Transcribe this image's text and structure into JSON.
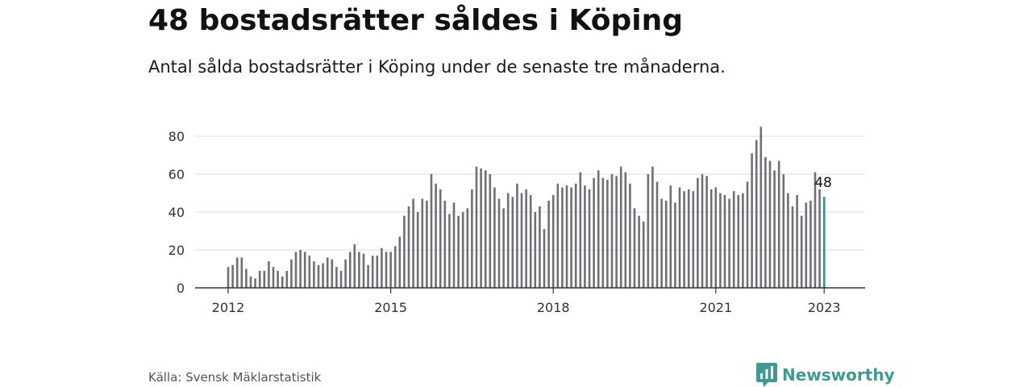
{
  "title": "48 bostadsrätter såldes i Köping",
  "subtitle": "Antal sålda bostadsrätter i Köping under de senaste tre månaderna.",
  "source": "Källa: Svensk Mäklarstatistik",
  "brand": {
    "name": "Newsworthy",
    "icon": "newsworthy-logo-icon",
    "color": "#3f9a92"
  },
  "colors": {
    "bar": "#6f6f76",
    "highlight": "#1a9c8e",
    "grid": "#dddddd",
    "axis": "#333333"
  },
  "chart_data": {
    "type": "bar",
    "title": "",
    "xlabel": "",
    "ylabel": "",
    "x_unit": "month",
    "x_start": "2012-01",
    "x_end": "2023-01",
    "x_ticks": [
      "2012",
      "2015",
      "2018",
      "2021",
      "2023"
    ],
    "y_ticks": [
      0,
      20,
      40,
      60,
      80
    ],
    "ylim": [
      0,
      88
    ],
    "grid": true,
    "legend": "none",
    "highlight_last": true,
    "last_value_label": "48",
    "values": [
      11,
      12,
      16,
      16,
      10,
      6,
      5,
      9,
      9,
      14,
      11,
      9,
      6,
      9,
      15,
      19,
      20,
      19,
      17,
      14,
      12,
      13,
      16,
      15,
      11,
      9,
      15,
      19,
      23,
      19,
      18,
      12,
      17,
      17,
      21,
      19,
      19,
      22,
      27,
      38,
      43,
      47,
      40,
      47,
      46,
      60,
      55,
      52,
      46,
      39,
      45,
      38,
      40,
      42,
      52,
      64,
      63,
      62,
      60,
      53,
      47,
      42,
      50,
      48,
      55,
      50,
      52,
      49,
      40,
      43,
      31,
      46,
      49,
      55,
      53,
      54,
      53,
      55,
      61,
      54,
      52,
      58,
      62,
      58,
      57,
      60,
      59,
      64,
      61,
      55,
      42,
      38,
      35,
      60,
      64,
      56,
      47,
      46,
      54,
      45,
      53,
      51,
      52,
      51,
      58,
      60,
      59,
      52,
      53,
      50,
      49,
      47,
      51,
      49,
      50,
      56,
      71,
      78,
      85,
      69,
      67,
      62,
      67,
      60,
      50,
      43,
      49,
      38,
      45,
      46,
      61,
      52,
      48
    ]
  }
}
